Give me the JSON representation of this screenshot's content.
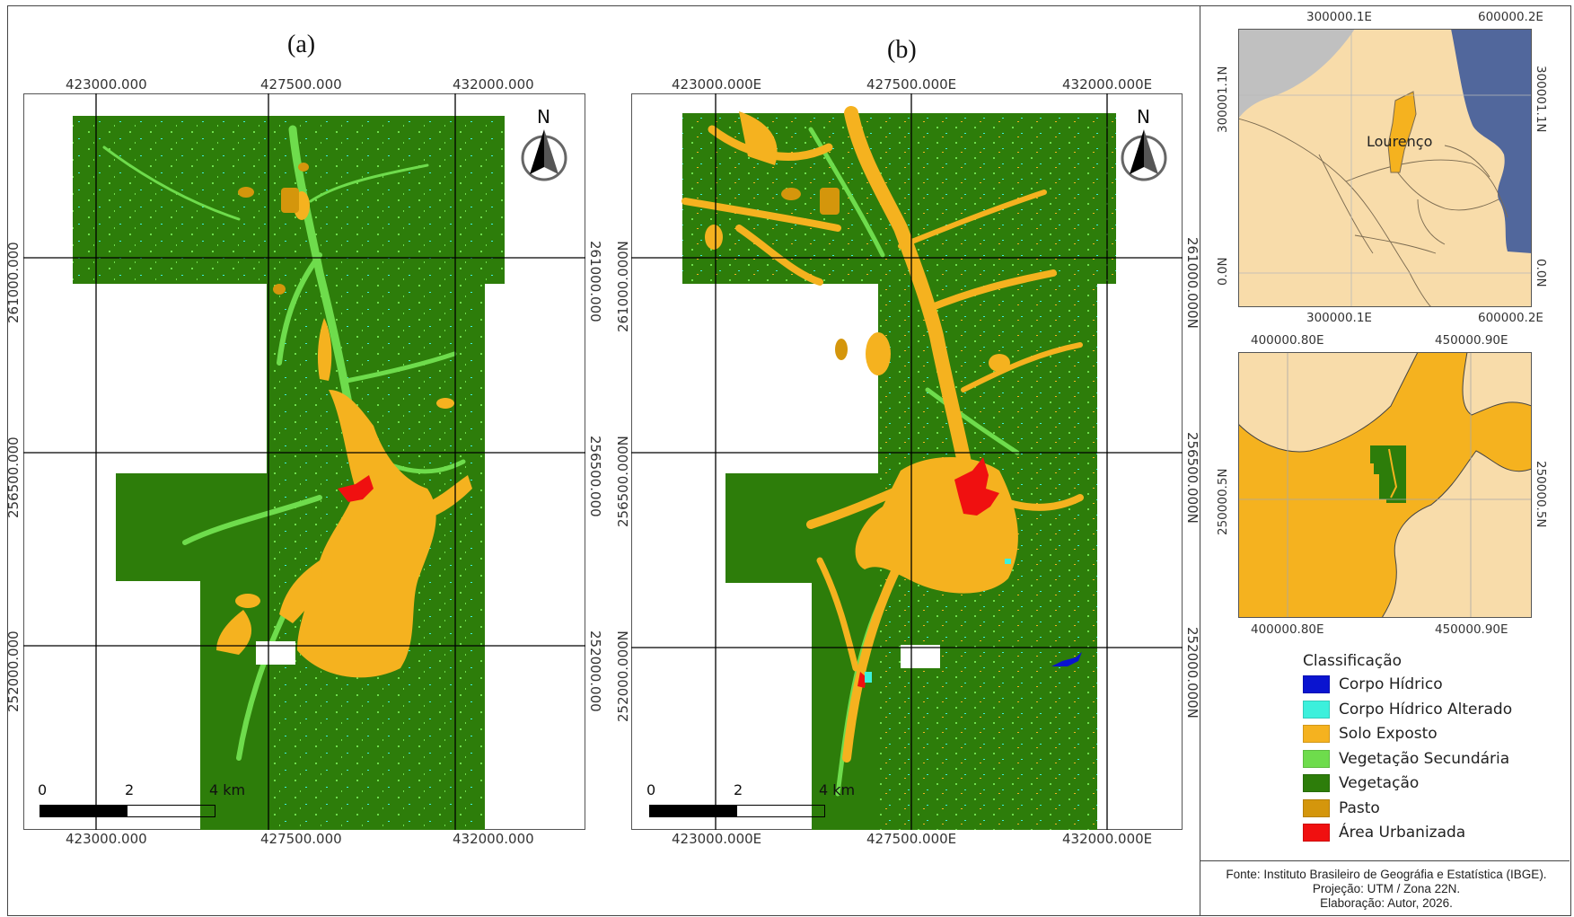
{
  "panels": {
    "a": {
      "label": "(a)",
      "x_ticks": [
        "423000.000",
        "427500.000",
        "432000.000"
      ],
      "y_ticks": [
        "261000.000",
        "256500.000",
        "252000.000"
      ]
    },
    "b": {
      "label": "(b)",
      "x_ticks": [
        "423000.000E",
        "427500.000E",
        "432000.000E"
      ],
      "y_ticks": [
        "261000.000N",
        "256500.000N",
        "252000.000N"
      ]
    },
    "north_label": "N",
    "scalebar": [
      "0",
      "2",
      "4 km"
    ]
  },
  "inset_top": {
    "x_ticks": [
      "300000.1E",
      "600000.2E"
    ],
    "y_ticks_left": [
      "300001.1N",
      "0.0N"
    ],
    "y_ticks_right": [
      "300001.1N",
      "0.0N"
    ],
    "place_label": "Lourenço"
  },
  "inset_bottom": {
    "x_ticks": [
      "400000.80E",
      "450000.90E"
    ],
    "y_ticks": [
      "250000.5N"
    ]
  },
  "legend": {
    "title": "Classificação",
    "items": [
      {
        "label": "Corpo Hídrico",
        "color": "#0a14d0"
      },
      {
        "label": "Corpo Hídrico Alterado",
        "color": "#3cf0dc"
      },
      {
        "label": "Solo Exposto",
        "color": "#f5b21f"
      },
      {
        "label": "Vegetação Secundária",
        "color": "#6edc4c"
      },
      {
        "label": "Vegetação",
        "color": "#2d7d0a"
      },
      {
        "label": "Pasto",
        "color": "#d4960c"
      },
      {
        "label": "Área Urbanizada",
        "color": "#f01010"
      }
    ]
  },
  "credits": {
    "line1": "Fonte: Instituto Brasileiro de Geográfia e Estatística (IBGE).",
    "line2": "Projeção: UTM / Zona 22N.",
    "line3": "Elaboração: Autor, 2026."
  },
  "colors": {
    "vegetation": "#2d7d0a",
    "solo": "#f5b21f",
    "sec": "#6edc4c",
    "urban": "#f01010",
    "water": "#0a14d0",
    "water_alt": "#3cf0dc",
    "pasto": "#d4960c",
    "state_light": "#f8dcaa",
    "ocean": "#51679c",
    "neighbor": "#c0c0c0",
    "municipality": "#f5b21f"
  }
}
